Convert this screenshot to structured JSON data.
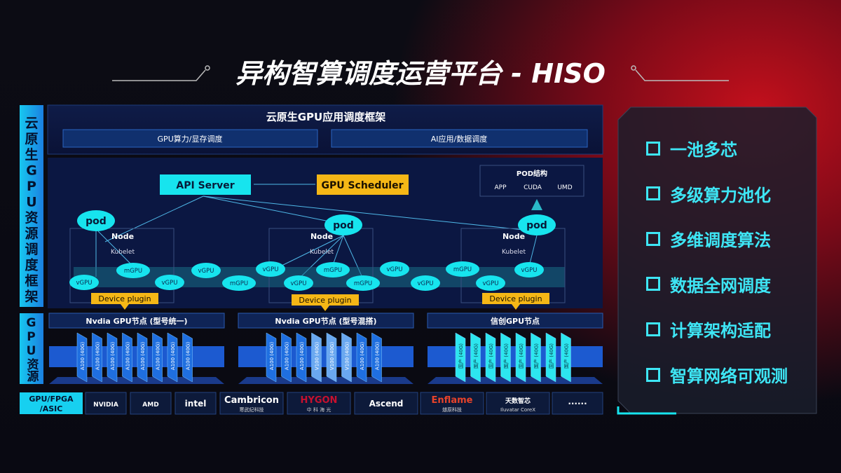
{
  "title": "异构智算调度运营平台 - HISO",
  "side_labels": {
    "top": "云原生GPU资源调度框架",
    "bottom": "GPU资源"
  },
  "framework": {
    "header": "云原生GPU应用调度框架",
    "sub": [
      "GPU算力/显存调度",
      "AI应用/数据调度"
    ]
  },
  "diagram": {
    "api_server": "API Server",
    "gpu_scheduler": "GPU Scheduler",
    "pod_struct": {
      "title": "POD结构",
      "items": [
        "APP",
        "CUDA",
        "UMD"
      ]
    },
    "pod": "pod",
    "node": "Node",
    "kubelet": "Kubelet",
    "device_plugin": "Device plugin",
    "units": [
      "vGPU",
      "mGPU",
      "vGPU",
      "vGPU",
      "mGPU",
      "vGPU",
      "vGPU",
      "mGPU",
      "mGPU",
      "vGPU",
      "vGPU",
      "mGPU",
      "vGPU",
      "vGPU"
    ]
  },
  "gpu_groups": [
    {
      "title": "Nvdia GPU节点 (型号统一)",
      "chips": [
        "A100 (40G)",
        "A100 (40G)",
        "A100 (40G)",
        "A100 (40G)",
        "A100 (40G)",
        "A100 (40G)",
        "A100 (40G)",
        "A100 (40G)"
      ]
    },
    {
      "title": "Nvdia GPU节点 (型号混搭)",
      "chips": [
        "A100 (40G)",
        "A100 (40G)",
        "A100 (40G)",
        "V100 (40G)",
        "V100 (40G)",
        "V100 (40G)",
        "A100 (40G)",
        "A100 (40G)"
      ]
    },
    {
      "title": "信创GPU节点",
      "chips": [
        "国产 (40G)",
        "国产 (40G)",
        "国产 (40G)",
        "国产 (40G)",
        "国产 (40G)",
        "国产 (40G)",
        "国产 (40G)",
        "国产 (40G)"
      ]
    }
  ],
  "vendors": {
    "label": [
      "GPU/FPGA",
      "/ASIC"
    ],
    "items": [
      {
        "name": "NVIDIA"
      },
      {
        "name": "AMD"
      },
      {
        "name": "intel"
      },
      {
        "name": "Cambricon",
        "sub": "寒武纪科技"
      },
      {
        "name": "HYGON",
        "sub": "中 科 海 光"
      },
      {
        "name": "Ascend"
      },
      {
        "name": "Enflame",
        "sub": "燧原科技"
      },
      {
        "name": "天数智芯",
        "sub": "Iluvatar CoreX"
      },
      {
        "name": "······"
      }
    ]
  },
  "features": [
    "一池多芯",
    "多级算力池化",
    "多维调度算法",
    "数据全网调度",
    "计算架构适配",
    "智算网络可观测"
  ],
  "colors": {
    "cyan": "#17e4ee",
    "gold": "#f5b716",
    "panel": "#0f1e4a",
    "chip_blue": "#1f6fe0",
    "chip_cyan": "#2de6ef"
  }
}
